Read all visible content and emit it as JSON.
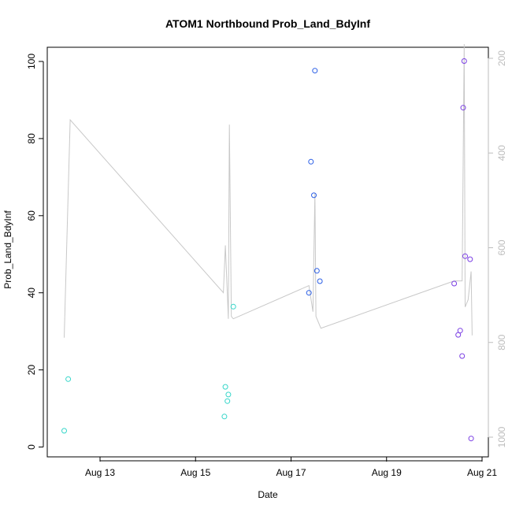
{
  "chart_data": {
    "type": "scatter",
    "title": "ATOM1 Northbound Prob_Land_BdyInf",
    "xlabel": "Date",
    "ylabel": "Prob_Land_BdyInf",
    "ylim": [
      0,
      100
    ],
    "y_ticks": [
      0,
      20,
      40,
      60,
      80,
      100
    ],
    "x_axis": {
      "type": "date",
      "ticks": [
        "2023-08-13",
        "2023-08-15",
        "2023-08-17",
        "2023-08-19",
        "2023-08-21"
      ],
      "tick_labels": [
        "Aug 13",
        "Aug 15",
        "Aug 17",
        "Aug 19",
        "Aug 21"
      ]
    },
    "secondary_y": {
      "reversed": true,
      "ticks": [
        200,
        400,
        600,
        800,
        1000
      ],
      "color": "#bdbdbd"
    },
    "series": [
      {
        "color": "#35d6c9",
        "points": [
          {
            "x": "2023-08-12T06:00",
            "y": 4.2
          },
          {
            "x": "2023-08-12T08:00",
            "y": 17.6
          },
          {
            "x": "2023-08-15T14:30",
            "y": 7.9
          },
          {
            "x": "2023-08-15T15:00",
            "y": 15.6
          },
          {
            "x": "2023-08-15T16:00",
            "y": 11.9
          },
          {
            "x": "2023-08-15T16:30",
            "y": 13.6
          },
          {
            "x": "2023-08-15T19:00",
            "y": 36.4
          }
        ]
      },
      {
        "color": "#2a5ee6",
        "points": [
          {
            "x": "2023-08-17T09:00",
            "y": 40.0
          },
          {
            "x": "2023-08-17T10:00",
            "y": 74.0
          },
          {
            "x": "2023-08-17T11:30",
            "y": 65.3
          },
          {
            "x": "2023-08-17T12:00",
            "y": 97.6
          },
          {
            "x": "2023-08-17T13:00",
            "y": 45.7
          },
          {
            "x": "2023-08-17T14:30",
            "y": 43.0
          }
        ]
      },
      {
        "color": "#7b3fe4",
        "points": [
          {
            "x": "2023-08-20T10:00",
            "y": 42.4
          },
          {
            "x": "2023-08-20T12:00",
            "y": 29.1
          },
          {
            "x": "2023-08-20T13:00",
            "y": 30.2
          },
          {
            "x": "2023-08-20T14:00",
            "y": 23.6
          },
          {
            "x": "2023-08-20T14:30",
            "y": 88.0
          },
          {
            "x": "2023-08-20T15:00",
            "y": 100.1
          },
          {
            "x": "2023-08-20T15:30",
            "y": 49.5
          },
          {
            "x": "2023-08-20T18:00",
            "y": 48.7
          },
          {
            "x": "2023-08-20T18:30",
            "y": 2.2
          }
        ]
      }
    ],
    "secondary_line": {
      "color": "#c8c8c8",
      "points": [
        {
          "x": "2023-08-12T06:00",
          "y2": 790
        },
        {
          "x": "2023-08-12T09:00",
          "y2": 330
        },
        {
          "x": "2023-08-15T14:00",
          "y2": 695
        },
        {
          "x": "2023-08-15T15:00",
          "y2": 595
        },
        {
          "x": "2023-08-15T16:30",
          "y2": 750
        },
        {
          "x": "2023-08-15T17:00",
          "y2": 340
        },
        {
          "x": "2023-08-15T18:00",
          "y2": 745
        },
        {
          "x": "2023-08-15T19:00",
          "y2": 750
        },
        {
          "x": "2023-08-17T09:00",
          "y2": 680
        },
        {
          "x": "2023-08-17T11:00",
          "y2": 735
        },
        {
          "x": "2023-08-17T12:00",
          "y2": 485
        },
        {
          "x": "2023-08-17T12:30",
          "y2": 745
        },
        {
          "x": "2023-08-17T13:30",
          "y2": 755
        },
        {
          "x": "2023-08-17T15:00",
          "y2": 770
        },
        {
          "x": "2023-08-20T10:00",
          "y2": 670
        },
        {
          "x": "2023-08-20T14:00",
          "y2": 670
        },
        {
          "x": "2023-08-20T15:00",
          "y2": 170
        },
        {
          "x": "2023-08-20T15:30",
          "y2": 725
        },
        {
          "x": "2023-08-20T17:00",
          "y2": 710
        },
        {
          "x": "2023-08-20T18:30",
          "y2": 650
        },
        {
          "x": "2023-08-20T19:00",
          "y2": 785
        }
      ]
    }
  }
}
